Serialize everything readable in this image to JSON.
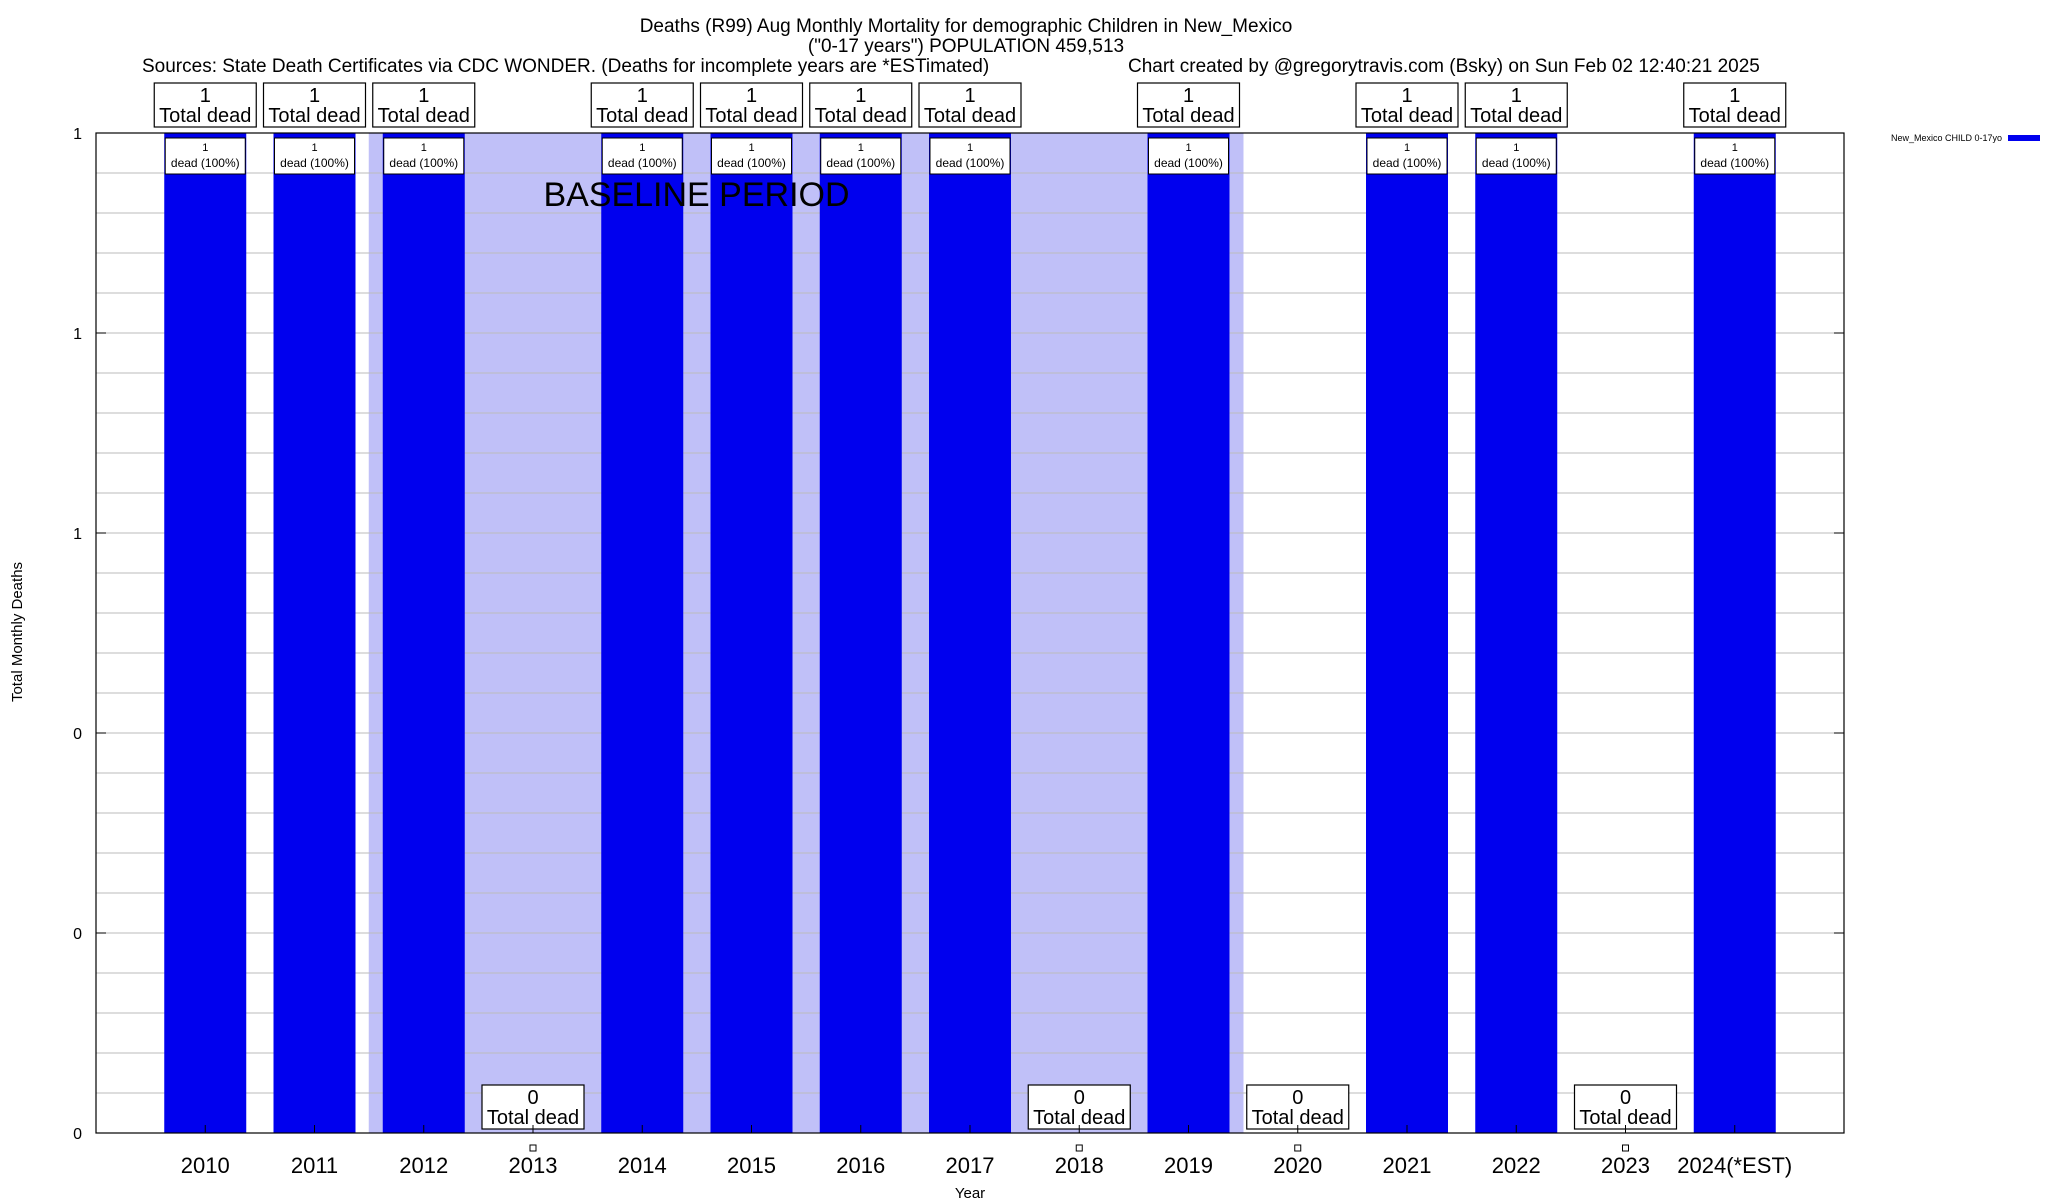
{
  "chart_data": {
    "type": "bar",
    "title_line1": "Deaths (R99) Aug Monthly Mortality for demographic Children in New_Mexico",
    "title_line2": "(\"0-17 years\") POPULATION 459,513",
    "sources": "Sources: State Death Certificates via CDC WONDER. (Deaths for incomplete years are *ESTimated)",
    "credit": "Chart created by @gregorytravis.com (Bsky) on Sun Feb 02 12:40:21 2025",
    "xlabel": "Year",
    "ylabel": "Total Monthly Deaths",
    "ylim": [
      0,
      1
    ],
    "y_ticks": [
      {
        "value": 0,
        "label": "0"
      },
      {
        "value": 0.2,
        "label": "0"
      },
      {
        "value": 0.4,
        "label": "0"
      },
      {
        "value": 0.6,
        "label": "1"
      },
      {
        "value": 0.8,
        "label": "1"
      },
      {
        "value": 1,
        "label": "1"
      }
    ],
    "minor_tick_step": 0.04,
    "baseline_label": "BASELINE PERIOD",
    "baseline_range": [
      "2012",
      "2019"
    ],
    "total_suffix": "Total dead",
    "categories": [
      "2010",
      "2011",
      "2012",
      "2013",
      "2014",
      "2015",
      "2016",
      "2017",
      "2018",
      "2019",
      "2020",
      "2021",
      "2022",
      "2023",
      "2024(*EST)"
    ],
    "series": [
      {
        "name": "New_Mexico CHILD 0-17yo",
        "color": "#0000ee",
        "values": [
          1,
          1,
          1,
          0,
          1,
          1,
          1,
          1,
          0,
          1,
          0,
          1,
          1,
          0,
          1
        ],
        "segment_labels": [
          "1\ndead (100%)",
          "1\ndead (100%)",
          "1\ndead (100%)",
          "",
          "1\ndead (100%)",
          "1\ndead (100%)",
          "1\ndead (100%)",
          "1\ndead (100%)",
          "",
          "1\ndead (100%)",
          "",
          "1\ndead (100%)",
          "1\ndead (100%)",
          "",
          "1\ndead (100%)"
        ]
      }
    ],
    "totals": [
      "1",
      "1",
      "1",
      "0",
      "1",
      "1",
      "1",
      "1",
      "0",
      "1",
      "0",
      "1",
      "1",
      "0",
      "1"
    ],
    "colors": {
      "bar": "#0000ee",
      "baseline_shade": "#c0c0f8",
      "grid": "#bbbbbb"
    }
  }
}
